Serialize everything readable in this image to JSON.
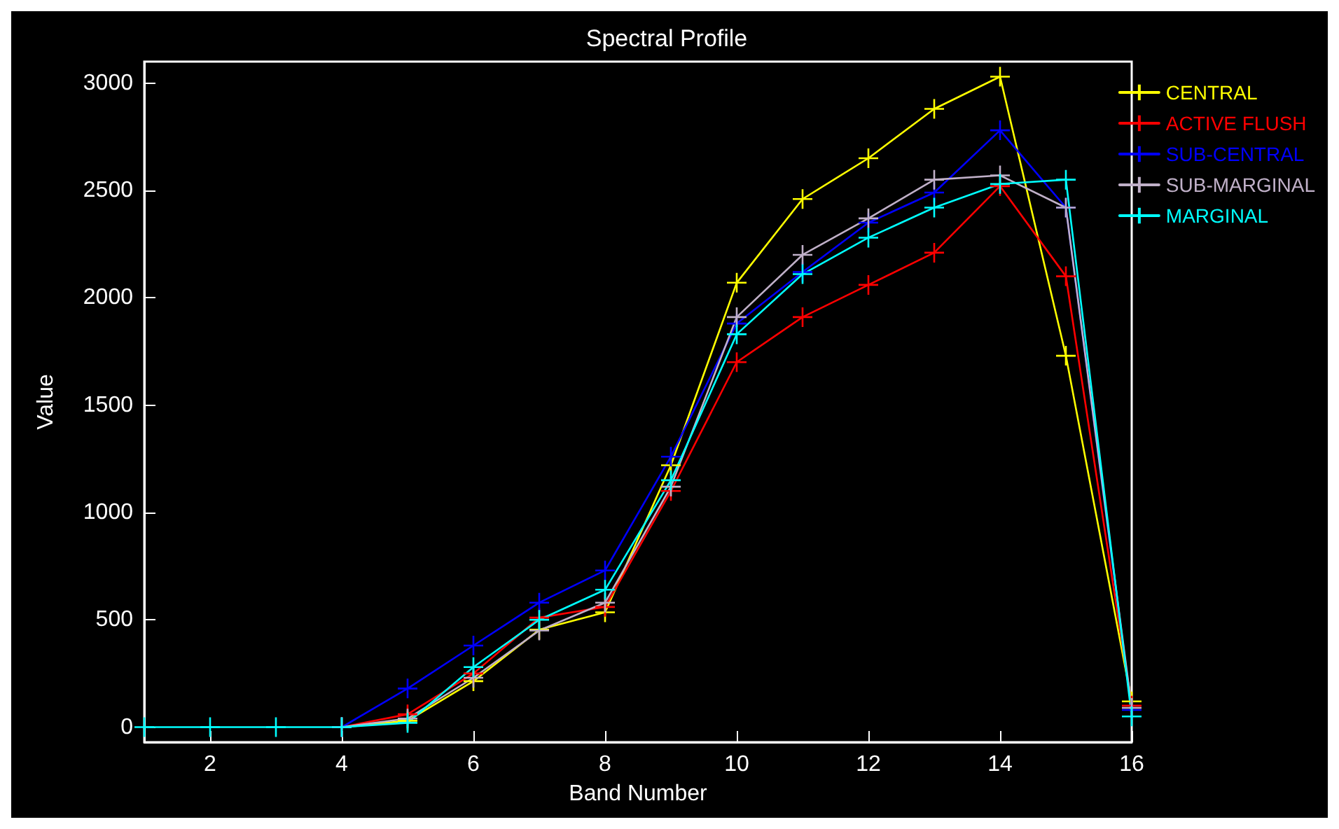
{
  "chart_data": {
    "type": "line",
    "title": "Spectral Profile",
    "xlabel": "Band Number",
    "ylabel": "Value",
    "x": [
      1,
      2,
      3,
      4,
      5,
      6,
      7,
      8,
      9,
      10,
      11,
      12,
      13,
      14,
      15,
      16
    ],
    "series": [
      {
        "name": "CENTRAL",
        "color": "#ffff00",
        "values": [
          null,
          null,
          null,
          0,
          30,
          214,
          454,
          535,
          1220,
          2070,
          2460,
          2650,
          2880,
          3030,
          1730,
          120
        ]
      },
      {
        "name": "ACTIVE FLUSH",
        "color": "#ff0000",
        "values": [
          null,
          null,
          null,
          0,
          60,
          250,
          510,
          560,
          1100,
          1700,
          1910,
          2060,
          2210,
          2520,
          2100,
          100
        ]
      },
      {
        "name": "SUB-CENTRAL",
        "color": "#0000ff",
        "values": [
          null,
          null,
          null,
          0,
          180,
          380,
          580,
          730,
          1260,
          1880,
          2120,
          2350,
          2490,
          2780,
          2420,
          80
        ]
      },
      {
        "name": "SUB-MARGINAL",
        "color": "#c0b0c8",
        "values": [
          null,
          null,
          null,
          0,
          40,
          230,
          450,
          580,
          1120,
          1910,
          2200,
          2370,
          2550,
          2570,
          2420,
          90
        ]
      },
      {
        "name": "MARGINAL",
        "color": "#00ffff",
        "values": [
          0,
          0,
          0,
          0,
          20,
          280,
          500,
          640,
          1150,
          1830,
          2110,
          2280,
          2420,
          2530,
          2550,
          50
        ]
      }
    ],
    "xlim": [
      1,
      16
    ],
    "xticks": [
      2,
      4,
      6,
      8,
      10,
      12,
      14,
      16
    ],
    "ylim": [
      -70,
      3100
    ],
    "yticks": [
      0,
      500,
      1000,
      1500,
      2000,
      2500,
      3000
    ],
    "grid": false,
    "legend": "right",
    "marker": "cross",
    "line_style": "solid"
  }
}
